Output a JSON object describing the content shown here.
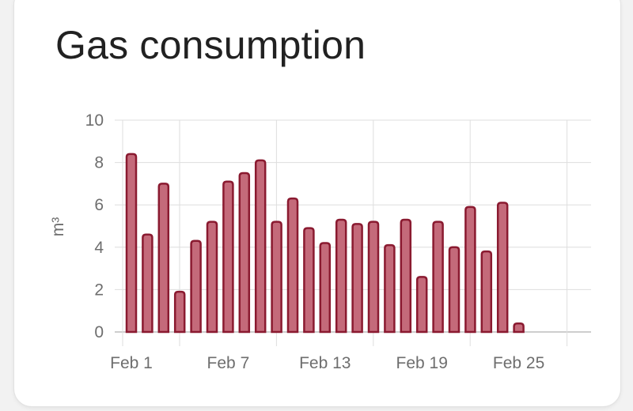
{
  "card": {
    "title": "Gas consumption"
  },
  "colors": {
    "bar_fill": "#c46a7a",
    "bar_stroke": "#8a1a30",
    "grid": "#dedede",
    "axis": "#bdbdbd",
    "tick_text": "#6e6e6e",
    "title_text": "#212121"
  },
  "chart_data": {
    "type": "bar",
    "title": "",
    "xlabel": "",
    "ylabel": "m³",
    "ylim": [
      0,
      10
    ],
    "yticks": [
      0,
      2,
      4,
      6,
      8,
      10
    ],
    "xticks": [
      "Feb 1",
      "Feb 7",
      "Feb 13",
      "Feb 19",
      "Feb 25"
    ],
    "grid": true,
    "categories": [
      "Feb 1",
      "Feb 2",
      "Feb 3",
      "Feb 4",
      "Feb 5",
      "Feb 6",
      "Feb 7",
      "Feb 8",
      "Feb 9",
      "Feb 10",
      "Feb 11",
      "Feb 12",
      "Feb 13",
      "Feb 14",
      "Feb 15",
      "Feb 16",
      "Feb 17",
      "Feb 18",
      "Feb 19",
      "Feb 20",
      "Feb 21",
      "Feb 22",
      "Feb 23",
      "Feb 24",
      "Feb 25"
    ],
    "values": [
      8.4,
      4.6,
      7.0,
      1.9,
      4.3,
      5.2,
      7.1,
      7.5,
      8.1,
      5.2,
      6.3,
      4.9,
      4.2,
      5.3,
      5.1,
      5.2,
      4.1,
      5.3,
      2.6,
      5.2,
      4.0,
      5.9,
      3.8,
      6.1,
      0.4
    ]
  }
}
